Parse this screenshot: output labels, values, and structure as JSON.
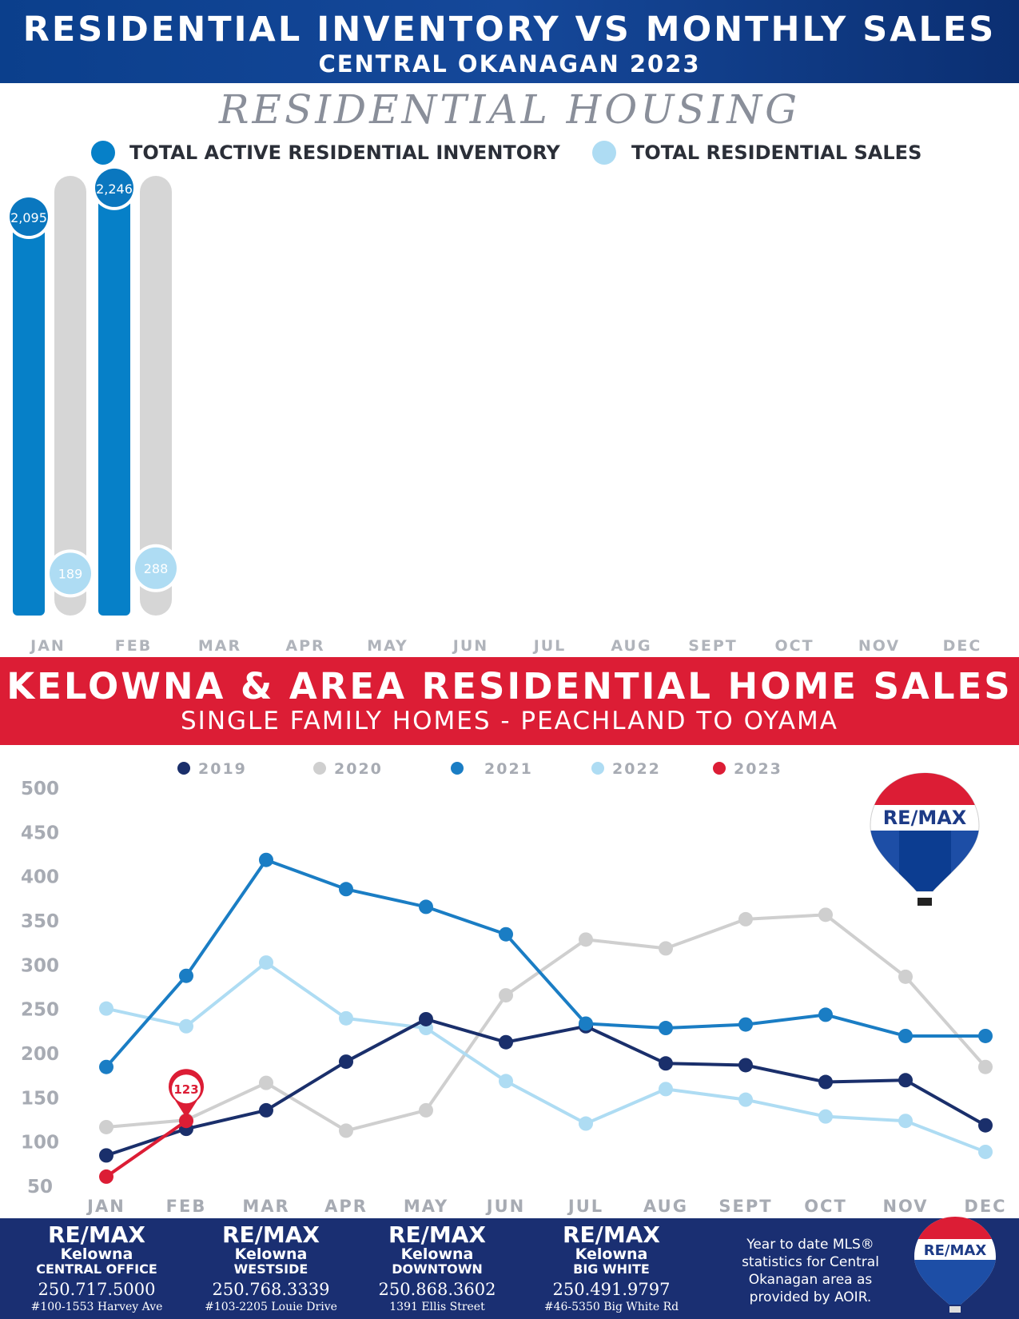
{
  "header": {
    "title": "RESIDENTIAL INVENTORY VS MONTHLY SALES",
    "subtitle": "CENTRAL OKANAGAN 2023"
  },
  "section1": {
    "script_title": "RESIDENTIAL HOUSING",
    "legend_inventory": "TOTAL ACTIVE RESIDENTIAL INVENTORY",
    "legend_sales": "TOTAL RESIDENTIAL SALES"
  },
  "section2": {
    "title": "KELOWNA & AREA RESIDENTIAL HOME SALES",
    "subtitle": "SINGLE FAMILY HOMES - PEACHLAND TO OYAMA"
  },
  "logo_text": "RE/MAX",
  "footer": {
    "offices": [
      {
        "brand": "RE/MAX",
        "city": "Kelowna",
        "branch": "CENTRAL OFFICE",
        "phone": "250.717.5000",
        "address": "#100-1553 Harvey Ave"
      },
      {
        "brand": "RE/MAX",
        "city": "Kelowna",
        "branch": "WESTSIDE",
        "phone": "250.768.3339",
        "address": "#103-2205 Louie Drive"
      },
      {
        "brand": "RE/MAX",
        "city": "Kelowna",
        "branch": "DOWNTOWN",
        "phone": "250.868.3602",
        "address": "1391 Ellis Street"
      },
      {
        "brand": "RE/MAX",
        "city": "Kelowna",
        "branch": "BIG WHITE",
        "phone": "250.491.9797",
        "address": "#46-5350 Big White Rd"
      }
    ],
    "note": "Year to date MLS® statistics for Central Okanagan area as provided by AOIR."
  },
  "colors": {
    "navy": "#1a2f6b",
    "blue": "#1a7dc4",
    "light_blue": "#aedcf3",
    "grey": "#cfcfcf",
    "red": "#dc1d35"
  },
  "chart_data": [
    {
      "type": "bar",
      "categories": [
        "JAN",
        "FEB",
        "MAR",
        "APR",
        "MAY",
        "JUN",
        "JUL",
        "AUG",
        "SEPT",
        "OCT",
        "NOV",
        "DEC"
      ],
      "series": [
        {
          "name": "TOTAL ACTIVE RESIDENTIAL INVENTORY",
          "values": [
            2095,
            2246,
            null,
            null,
            null,
            null,
            null,
            null,
            null,
            null,
            null,
            null
          ],
          "labels": [
            "2,095",
            "2,246"
          ],
          "color": "#0680c8"
        },
        {
          "name": "TOTAL RESIDENTIAL SALES",
          "values": [
            189,
            288,
            null,
            null,
            null,
            null,
            null,
            null,
            null,
            null,
            null,
            null
          ],
          "labels": [
            "189",
            "288"
          ],
          "color": "#aedcf3"
        }
      ],
      "title": "RESIDENTIAL HOUSING",
      "legend": "top"
    },
    {
      "type": "line",
      "categories": [
        "JAN",
        "FEB",
        "MAR",
        "APR",
        "MAY",
        "JUN",
        "JUL",
        "AUG",
        "SEPT",
        "OCT",
        "NOV",
        "DEC"
      ],
      "ylim": [
        50,
        500
      ],
      "yticks": [
        50,
        100,
        150,
        200,
        250,
        300,
        350,
        400,
        450,
        500
      ],
      "series": [
        {
          "name": "2019",
          "color": "#1a2f6b",
          "values": [
            84,
            114,
            135,
            190,
            238,
            212,
            230,
            188,
            186,
            167,
            169,
            118
          ]
        },
        {
          "name": "2020",
          "color": "#cfcfcf",
          "values": [
            116,
            124,
            166,
            112,
            135,
            265,
            328,
            318,
            351,
            356,
            286,
            184
          ]
        },
        {
          "name": "2021",
          "color": "#1a7dc4",
          "values": [
            184,
            287,
            418,
            385,
            365,
            334,
            233,
            228,
            232,
            243,
            219,
            219
          ]
        },
        {
          "name": "2022",
          "color": "#aedcf3",
          "values": [
            250,
            230,
            302,
            239,
            228,
            168,
            120,
            159,
            147,
            128,
            123,
            88
          ]
        },
        {
          "name": "2023",
          "color": "#dc1d35",
          "values": [
            60,
            123,
            null,
            null,
            null,
            null,
            null,
            null,
            null,
            null,
            null,
            null
          ]
        }
      ],
      "annotations": [
        {
          "series": "2023",
          "month": "FEB",
          "label": "123"
        }
      ],
      "title": "KELOWNA & AREA RESIDENTIAL HOME SALES",
      "legend": "top",
      "grid": false
    }
  ]
}
